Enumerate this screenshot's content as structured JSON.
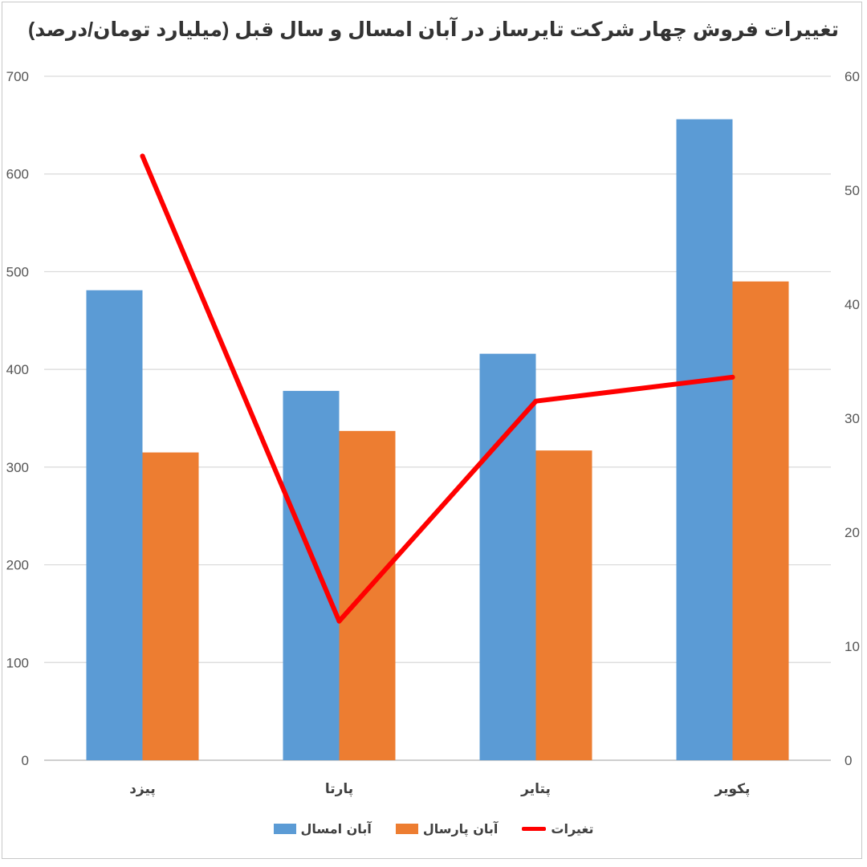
{
  "chart_data": {
    "type": "bar",
    "title": "تغییرات فروش چهار شرکت تایرساز در آبان امسال و سال قبل (میلیارد تومان/درصد)",
    "categories": [
      "پیزد",
      "پارتا",
      "پتایر",
      "پکویر"
    ],
    "series": [
      {
        "name": "آبان امسال",
        "type": "bar",
        "axis": "left",
        "color": "#5b9bd5",
        "values": [
          481,
          378,
          416,
          656
        ]
      },
      {
        "name": "آبان پارسال",
        "type": "bar",
        "axis": "left",
        "color": "#ed7d31",
        "values": [
          315,
          337,
          317,
          490
        ]
      },
      {
        "name": "تغیرات",
        "type": "line",
        "axis": "right",
        "color": "#ff0000",
        "values": [
          53,
          12.2,
          31.5,
          33.6
        ]
      }
    ],
    "y_left": {
      "min": 0,
      "max": 700,
      "step": 100,
      "ticks": [
        "0",
        "100",
        "200",
        "300",
        "400",
        "500",
        "600",
        "700"
      ]
    },
    "y_right": {
      "min": 0,
      "max": 60,
      "step": 10,
      "ticks": [
        "0",
        "10",
        "20",
        "30",
        "40",
        "50",
        "60"
      ]
    },
    "grid": true,
    "legend_position": "bottom"
  }
}
